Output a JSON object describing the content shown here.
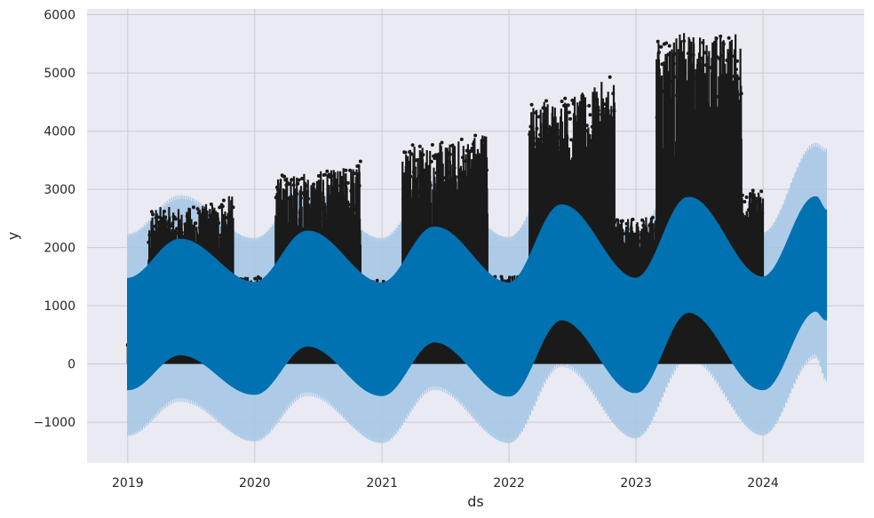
{
  "chart_data": {
    "type": "line",
    "title": "",
    "xlabel": "ds",
    "ylabel": "y",
    "x_ticks": [
      "2019",
      "2020",
      "2021",
      "2022",
      "2023",
      "2024"
    ],
    "y_ticks": [
      "−1000",
      "0",
      "1000",
      "2000",
      "3000",
      "4000",
      "5000",
      "6000"
    ],
    "y_tick_values": [
      -1000,
      0,
      1000,
      2000,
      3000,
      4000,
      5000,
      6000
    ],
    "xlim": [
      "2018-09-06",
      "2024-10-18"
    ],
    "ylim": [
      -1700,
      6100
    ],
    "grid": true,
    "background": "#eaeaf2",
    "series": [
      {
        "kind": "observed points (daily values, dense black scatter)",
        "color": "#1a1a1a",
        "x_range": [
          "2019-01-01",
          "2024-01-01"
        ],
        "daily_min": 0,
        "seasonal_peak_max": [
          {
            "date": "2019-06-01",
            "value": 2700
          },
          {
            "date": "2020-06-01",
            "value": 3300
          },
          {
            "date": "2021-06-01",
            "value": 3800
          },
          {
            "date": "2022-06-01",
            "value": 4600
          },
          {
            "date": "2023-06-01",
            "value": 5700
          }
        ],
        "winter_max": [
          {
            "date": "2019-01-01",
            "value": 400
          },
          {
            "date": "2019-12-01",
            "value": 1500
          },
          {
            "date": "2020-12-01",
            "value": 1450
          },
          {
            "date": "2021-12-01",
            "value": 1500
          },
          {
            "date": "2022-12-01",
            "value": 2500
          },
          {
            "date": "2023-12-01",
            "value": 3000
          }
        ]
      },
      {
        "kind": "forecast yhat (daily oscillating envelope)",
        "color": "#0072b2",
        "x_range": [
          "2019-01-01",
          "2024-07-01"
        ],
        "upper": [
          {
            "date": "2019-01-01",
            "value": 1480
          },
          {
            "date": "2019-06-01",
            "value": 2150
          },
          {
            "date": "2019-12-31",
            "value": 1410
          },
          {
            "date": "2020-06-01",
            "value": 2290
          },
          {
            "date": "2020-12-31",
            "value": 1400
          },
          {
            "date": "2021-06-01",
            "value": 2360
          },
          {
            "date": "2021-12-31",
            "value": 1400
          },
          {
            "date": "2022-06-01",
            "value": 2740
          },
          {
            "date": "2022-12-31",
            "value": 1480
          },
          {
            "date": "2023-06-01",
            "value": 2870
          },
          {
            "date": "2023-12-31",
            "value": 1500
          },
          {
            "date": "2024-06-01",
            "value": 2880
          },
          {
            "date": "2024-07-01",
            "value": 2650
          }
        ],
        "lower": [
          {
            "date": "2019-01-01",
            "value": -450
          },
          {
            "date": "2019-06-01",
            "value": 150
          },
          {
            "date": "2019-12-31",
            "value": -530
          },
          {
            "date": "2020-06-01",
            "value": 300
          },
          {
            "date": "2020-12-31",
            "value": -550
          },
          {
            "date": "2021-06-01",
            "value": 370
          },
          {
            "date": "2021-12-31",
            "value": -560
          },
          {
            "date": "2022-06-01",
            "value": 750
          },
          {
            "date": "2022-12-31",
            "value": -500
          },
          {
            "date": "2023-06-01",
            "value": 880
          },
          {
            "date": "2023-12-31",
            "value": -450
          },
          {
            "date": "2024-06-01",
            "value": 900
          },
          {
            "date": "2024-07-01",
            "value": 750
          }
        ]
      },
      {
        "kind": "uncertainty interval (light blue band)",
        "color": "#a6c8e4",
        "x_range": [
          "2019-01-01",
          "2024-07-01"
        ],
        "upper": [
          {
            "date": "2019-01-01",
            "value": 2250
          },
          {
            "date": "2019-06-01",
            "value": 2900
          },
          {
            "date": "2019-12-31",
            "value": 2180
          },
          {
            "date": "2020-06-01",
            "value": 3050
          },
          {
            "date": "2020-12-31",
            "value": 2180
          },
          {
            "date": "2021-06-01",
            "value": 3150
          },
          {
            "date": "2021-12-31",
            "value": 2200
          },
          {
            "date": "2022-06-01",
            "value": 3520
          },
          {
            "date": "2022-12-31",
            "value": 2260
          },
          {
            "date": "2023-06-01",
            "value": 3650
          },
          {
            "date": "2023-12-31",
            "value": 2280
          },
          {
            "date": "2024-06-01",
            "value": 3800
          },
          {
            "date": "2024-07-01",
            "value": 3700
          }
        ],
        "lower": [
          {
            "date": "2019-01-01",
            "value": -1250
          },
          {
            "date": "2019-06-01",
            "value": -650
          },
          {
            "date": "2019-12-31",
            "value": -1350
          },
          {
            "date": "2020-06-01",
            "value": -550
          },
          {
            "date": "2020-12-31",
            "value": -1380
          },
          {
            "date": "2021-06-01",
            "value": -450
          },
          {
            "date": "2021-12-31",
            "value": -1380
          },
          {
            "date": "2022-06-01",
            "value": -50
          },
          {
            "date": "2022-12-31",
            "value": -1300
          },
          {
            "date": "2023-06-01",
            "value": 80
          },
          {
            "date": "2023-12-31",
            "value": -1250
          },
          {
            "date": "2024-06-01",
            "value": 100
          },
          {
            "date": "2024-07-01",
            "value": -300
          }
        ]
      }
    ]
  }
}
